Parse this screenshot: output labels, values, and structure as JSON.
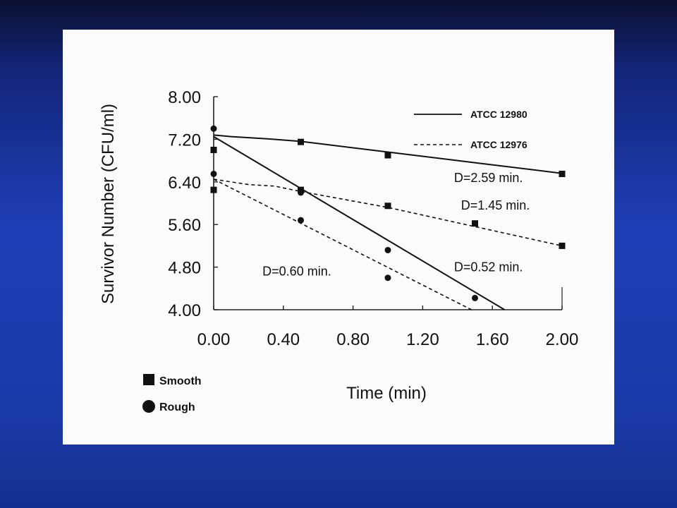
{
  "chart_data": {
    "type": "scatter",
    "xlabel": "Time (min)",
    "ylabel": "Survivor Number (CFU/ml)",
    "xlim": [
      0,
      2.0
    ],
    "ylim": [
      4.0,
      8.0
    ],
    "x_ticks": [
      "0.00",
      "0.40",
      "0.80",
      "1.20",
      "1.60",
      "2.00"
    ],
    "y_ticks": [
      "8.00",
      "7.20",
      "6.40",
      "5.60",
      "4.80",
      "4.00"
    ],
    "line_legend": [
      {
        "label": "ATCC 12980",
        "style": "solid"
      },
      {
        "label": "ATCC 12976",
        "style": "dashed"
      }
    ],
    "marker_legend": [
      {
        "label": "Smooth",
        "marker": "square"
      },
      {
        "label": "Rough",
        "marker": "circle"
      }
    ],
    "series": [
      {
        "strain": "ATCC 12980",
        "marker": "square",
        "points": [
          [
            0,
            7.0
          ],
          [
            0.5,
            7.15
          ],
          [
            1.0,
            6.9
          ],
          [
            2.0,
            6.55
          ]
        ]
      },
      {
        "strain": "ATCC 12976",
        "marker": "square",
        "points": [
          [
            0,
            6.25
          ],
          [
            0.5,
            6.25
          ],
          [
            1.0,
            5.95
          ],
          [
            1.5,
            5.62
          ],
          [
            2.0,
            5.2
          ]
        ]
      },
      {
        "strain": "ATCC 12980",
        "marker": "circle",
        "points": [
          [
            0,
            7.4
          ],
          [
            0.5,
            6.2
          ],
          [
            1.0,
            5.12
          ],
          [
            1.5,
            4.22
          ]
        ]
      },
      {
        "strain": "ATCC 12976",
        "marker": "circle",
        "points": [
          [
            0,
            6.55
          ],
          [
            0.5,
            5.68
          ],
          [
            1.0,
            4.6
          ]
        ]
      }
    ],
    "fit_lines": [
      {
        "style": "solid",
        "points": [
          [
            0,
            7.28
          ],
          [
            0.1,
            7.25
          ],
          [
            0.2,
            7.23
          ],
          [
            0.3,
            7.21
          ],
          [
            0.5,
            7.16
          ],
          [
            1.0,
            6.96
          ],
          [
            1.5,
            6.76
          ],
          [
            2.0,
            6.56
          ]
        ]
      },
      {
        "style": "dashed",
        "points": [
          [
            0,
            6.45
          ],
          [
            0.2,
            6.35
          ],
          [
            0.35,
            6.32
          ],
          [
            0.5,
            6.22
          ],
          [
            1.0,
            5.92
          ],
          [
            1.5,
            5.56
          ],
          [
            2.0,
            5.2
          ]
        ]
      },
      {
        "style": "solid",
        "points": [
          [
            0,
            7.25
          ],
          [
            1.67,
            4.0
          ]
        ]
      },
      {
        "style": "dashed",
        "points": [
          [
            0,
            6.45
          ],
          [
            1.48,
            4.0
          ]
        ]
      }
    ],
    "annotations": [
      {
        "text": "D=2.59 min.",
        "x": 1.38,
        "y": 6.4
      },
      {
        "text": "D=1.45 min.",
        "x": 1.42,
        "y": 5.88
      },
      {
        "text": "D=0.60 min.",
        "x": 0.28,
        "y": 4.64
      },
      {
        "text": "D=0.52 min.",
        "x": 1.38,
        "y": 4.72
      }
    ]
  }
}
